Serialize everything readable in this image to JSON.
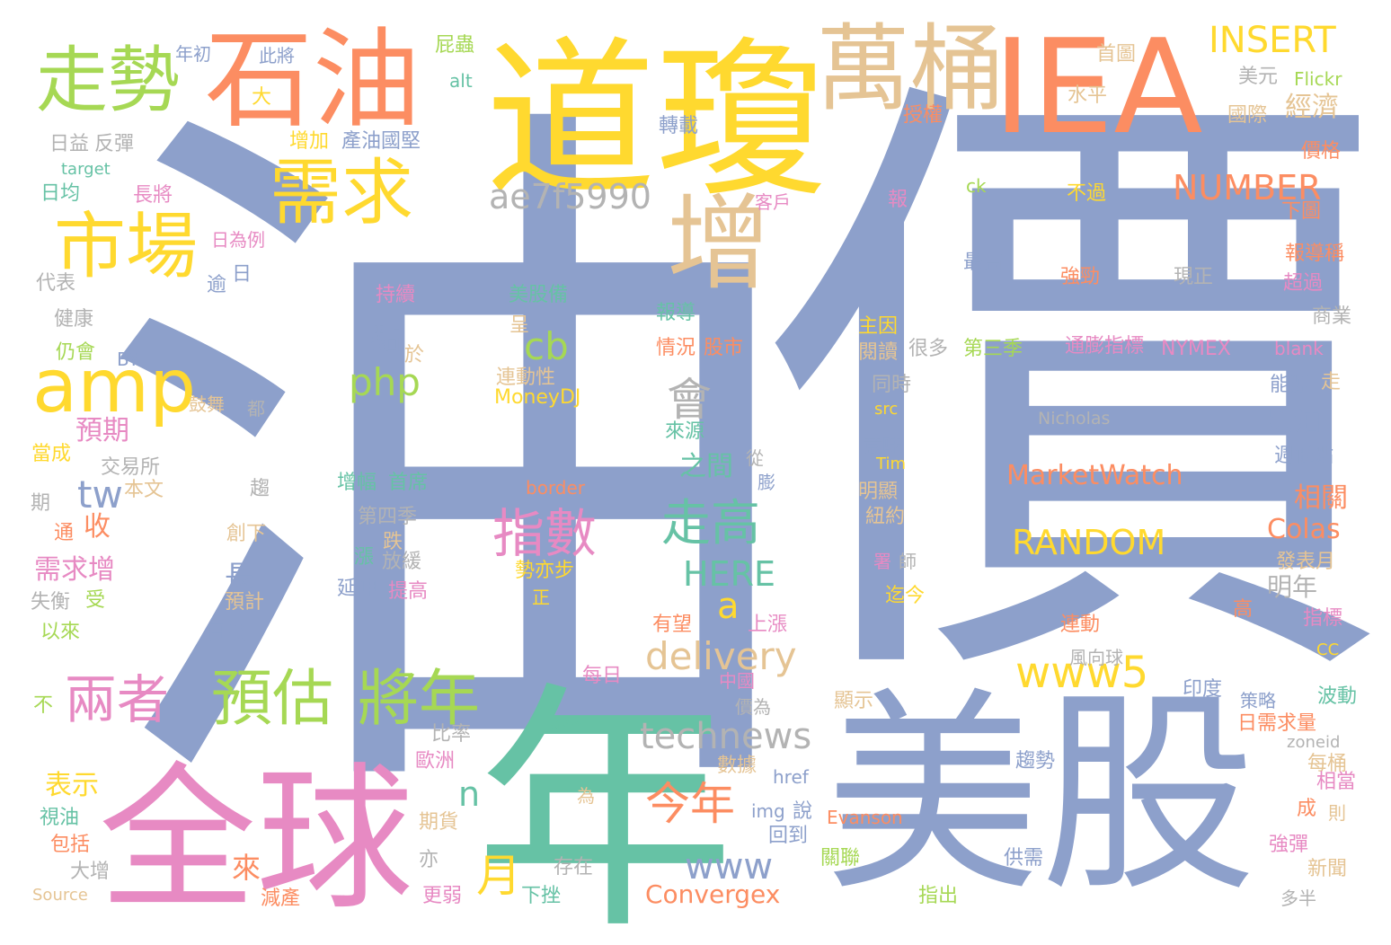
{
  "palette": {
    "blue": "#8da0cb",
    "teal": "#66c2a5",
    "orange": "#fc8d62",
    "pink": "#e78ac3",
    "green": "#a6d854",
    "yellow": "#ffd92f",
    "tan": "#e5c494",
    "gray": "#b3b3b3"
  },
  "words": [
    {
      "text": "油",
      "color": "blue"
    },
    {
      "text": "價",
      "color": "blue"
    },
    {
      "text": "道瓊",
      "color": "yellow"
    },
    {
      "text": "IEA",
      "color": "orange"
    },
    {
      "text": "年",
      "color": "teal"
    },
    {
      "text": "美股",
      "color": "blue"
    },
    {
      "text": "全球",
      "color": "pink"
    },
    {
      "text": "石油",
      "color": "orange"
    },
    {
      "text": "萬桶",
      "color": "tan"
    },
    {
      "text": "走勢",
      "color": "green"
    },
    {
      "text": "需求",
      "color": "yellow"
    },
    {
      "text": "市場",
      "color": "yellow"
    },
    {
      "text": "增",
      "color": "tan"
    },
    {
      "text": "amp",
      "color": "yellow"
    },
    {
      "text": "預估",
      "color": "green"
    },
    {
      "text": "將年",
      "color": "green"
    },
    {
      "text": "兩者",
      "color": "pink"
    },
    {
      "text": "指數",
      "color": "pink"
    },
    {
      "text": "走高",
      "color": "teal"
    },
    {
      "text": "www5",
      "color": "yellow"
    },
    {
      "text": "RANDOM",
      "color": "yellow"
    },
    {
      "text": "NUMBER",
      "color": "orange"
    },
    {
      "text": "INSERT",
      "color": "yellow"
    },
    {
      "text": "MarketWatch",
      "color": "orange"
    },
    {
      "text": "ae7f5990",
      "color": "gray"
    },
    {
      "text": "technews",
      "color": "gray"
    },
    {
      "text": "delivery",
      "color": "tan"
    },
    {
      "text": "今年",
      "color": "orange"
    },
    {
      "text": "HERE",
      "color": "teal"
    },
    {
      "text": "www",
      "color": "blue"
    },
    {
      "text": "Convergex",
      "color": "orange"
    },
    {
      "text": "php",
      "color": "green"
    },
    {
      "text": "cb",
      "color": "green"
    },
    {
      "text": "a",
      "color": "yellow"
    },
    {
      "text": "n",
      "color": "teal"
    },
    {
      "text": "月",
      "color": "yellow"
    },
    {
      "text": "會",
      "color": "gray"
    },
    {
      "text": "tw",
      "color": "blue"
    },
    {
      "text": "Colas",
      "color": "orange"
    },
    {
      "text": "原油",
      "color": "blue"
    },
    {
      "text": "明年",
      "color": "gray"
    },
    {
      "text": "相關",
      "color": "orange"
    },
    {
      "text": "點",
      "color": "blue"
    },
    {
      "text": "之間",
      "color": "teal"
    },
    {
      "text": "預期",
      "color": "pink"
    },
    {
      "text": "需求增",
      "color": "pink"
    },
    {
      "text": "表示",
      "color": "yellow"
    },
    {
      "text": "收",
      "color": "orange"
    },
    {
      "text": "長",
      "color": "blue"
    },
    {
      "text": "來",
      "color": "orange"
    },
    {
      "text": "經濟",
      "color": "tan"
    },
    {
      "text": "Nicholas",
      "color": "gray"
    },
    {
      "text": "Evanson",
      "color": "orange"
    },
    {
      "text": "NYMEX",
      "color": "pink"
    },
    {
      "text": "MoneyDJ",
      "color": "yellow"
    },
    {
      "text": "通膨指標",
      "color": "pink"
    },
    {
      "text": "第三季",
      "color": "green"
    },
    {
      "text": "很多",
      "color": "gray"
    },
    {
      "text": "情況",
      "color": "orange"
    },
    {
      "text": "股市",
      "color": "orange"
    },
    {
      "text": "報導",
      "color": "teal"
    },
    {
      "text": "美股備",
      "color": "teal"
    },
    {
      "text": "持續",
      "color": "pink"
    },
    {
      "text": "連動性",
      "color": "tan"
    },
    {
      "text": "增幅",
      "color": "teal"
    },
    {
      "text": "首席",
      "color": "teal"
    },
    {
      "text": "第四季",
      "color": "gray"
    },
    {
      "text": "放緩",
      "color": "gray"
    },
    {
      "text": "延伸",
      "color": "blue"
    },
    {
      "text": "提高",
      "color": "pink"
    },
    {
      "text": "勢亦步",
      "color": "yellow"
    },
    {
      "text": "border",
      "color": "orange"
    },
    {
      "text": "產油國堅",
      "color": "blue"
    },
    {
      "text": "增加",
      "color": "yellow"
    },
    {
      "text": "轉載",
      "color": "blue"
    },
    {
      "text": "屁蟲",
      "color": "green"
    },
    {
      "text": "alt",
      "color": "teal"
    },
    {
      "text": "此將",
      "color": "blue"
    },
    {
      "text": "年初",
      "color": "blue"
    },
    {
      "text": "大",
      "color": "yellow"
    },
    {
      "text": "日益",
      "color": "gray"
    },
    {
      "text": "反彈",
      "color": "gray"
    },
    {
      "text": "target",
      "color": "teal"
    },
    {
      "text": "日均",
      "color": "teal"
    },
    {
      "text": "長將",
      "color": "pink"
    },
    {
      "text": "客戶",
      "color": "pink"
    },
    {
      "text": "日為例",
      "color": "pink"
    },
    {
      "text": "代表",
      "color": "gray"
    },
    {
      "text": "逾",
      "color": "blue"
    },
    {
      "text": "日",
      "color": "blue"
    },
    {
      "text": "健康",
      "color": "gray"
    },
    {
      "text": "仍會",
      "color": "green"
    },
    {
      "text": "BY",
      "color": "blue"
    },
    {
      "text": "於",
      "color": "tan"
    },
    {
      "text": "鼓舞",
      "color": "tan"
    },
    {
      "text": "都",
      "color": "gray"
    },
    {
      "text": "當成",
      "color": "yellow"
    },
    {
      "text": "交易所",
      "color": "gray"
    },
    {
      "text": "本文",
      "color": "tan"
    },
    {
      "text": "趨",
      "color": "gray"
    },
    {
      "text": "期",
      "color": "gray"
    },
    {
      "text": "通",
      "color": "orange"
    },
    {
      "text": "創下",
      "color": "tan"
    },
    {
      "text": "失衡",
      "color": "gray"
    },
    {
      "text": "受",
      "color": "green"
    },
    {
      "text": "預計",
      "color": "tan"
    },
    {
      "text": "以來",
      "color": "green"
    },
    {
      "text": "日以",
      "color": "blue"
    },
    {
      "text": "不",
      "color": "green"
    },
    {
      "text": "首圖",
      "color": "tan"
    },
    {
      "text": "美元",
      "color": "gray"
    },
    {
      "text": "Flickr",
      "color": "green"
    },
    {
      "text": "水平",
      "color": "tan"
    },
    {
      "text": "授權",
      "color": "orange"
    },
    {
      "text": "國際",
      "color": "tan"
    },
    {
      "text": "價格",
      "color": "orange"
    },
    {
      "text": "報",
      "color": "pink"
    },
    {
      "text": "ck",
      "color": "green"
    },
    {
      "text": "不過",
      "color": "yellow"
    },
    {
      "text": "下圖",
      "color": "orange"
    },
    {
      "text": "最高",
      "color": "blue"
    },
    {
      "text": "強勁",
      "color": "orange"
    },
    {
      "text": "現正",
      "color": "gray"
    },
    {
      "text": "報導稱",
      "color": "orange"
    },
    {
      "text": "超過",
      "color": "pink"
    },
    {
      "text": "商業",
      "color": "gray"
    },
    {
      "text": "blank",
      "color": "pink"
    },
    {
      "text": "主因",
      "color": "yellow"
    },
    {
      "text": "閱讀",
      "color": "tan"
    },
    {
      "text": "能源",
      "color": "blue"
    },
    {
      "text": "走",
      "color": "tan"
    },
    {
      "text": "同時",
      "color": "gray"
    },
    {
      "text": "src",
      "color": "yellow"
    },
    {
      "text": "週低點",
      "color": "blue"
    },
    {
      "text": "意味",
      "color": "blue"
    },
    {
      "text": "Tim",
      "color": "yellow"
    },
    {
      "text": "明顯",
      "color": "tan"
    },
    {
      "text": "紐約",
      "color": "tan"
    },
    {
      "text": "署",
      "color": "pink"
    },
    {
      "text": "師",
      "color": "gray"
    },
    {
      "text": "發表月",
      "color": "tan"
    },
    {
      "text": "迄今",
      "color": "yellow"
    },
    {
      "text": "高",
      "color": "orange"
    },
    {
      "text": "連動",
      "color": "orange"
    },
    {
      "text": "指標",
      "color": "pink"
    },
    {
      "text": "風向球",
      "color": "gray"
    },
    {
      "text": "CC",
      "color": "yellow"
    },
    {
      "text": "有望",
      "color": "orange"
    },
    {
      "text": "上漲",
      "color": "pink"
    },
    {
      "text": "每日",
      "color": "pink"
    },
    {
      "text": "中國",
      "color": "pink"
    },
    {
      "text": "印度",
      "color": "blue"
    },
    {
      "text": "策略",
      "color": "blue"
    },
    {
      "text": "波動",
      "color": "teal"
    },
    {
      "text": "價為",
      "color": "gray"
    },
    {
      "text": "顯示",
      "color": "tan"
    },
    {
      "text": "日需求量",
      "color": "orange"
    },
    {
      "text": "avw",
      "color": "teal"
    },
    {
      "text": "比率",
      "color": "gray"
    },
    {
      "text": "歐洲",
      "color": "pink"
    },
    {
      "text": "數據",
      "color": "tan"
    },
    {
      "text": "href",
      "color": "blue"
    },
    {
      "text": "趨勢",
      "color": "blue"
    },
    {
      "text": "zoneid",
      "color": "gray"
    },
    {
      "text": "每桶",
      "color": "tan"
    },
    {
      "text": "相當",
      "color": "pink"
    },
    {
      "text": "為",
      "color": "tan"
    },
    {
      "text": "img",
      "color": "blue"
    },
    {
      "text": "說",
      "color": "blue"
    },
    {
      "text": "成",
      "color": "orange"
    },
    {
      "text": "則",
      "color": "tan"
    },
    {
      "text": "期貨",
      "color": "tan"
    },
    {
      "text": "回到",
      "color": "blue"
    },
    {
      "text": "強彈",
      "color": "pink"
    },
    {
      "text": "亦",
      "color": "gray"
    },
    {
      "text": "存在",
      "color": "gray"
    },
    {
      "text": "關聯",
      "color": "green"
    },
    {
      "text": "供需",
      "color": "blue"
    },
    {
      "text": "新聞",
      "color": "tan"
    },
    {
      "text": "視油",
      "color": "teal"
    },
    {
      "text": "包括",
      "color": "orange"
    },
    {
      "text": "大增",
      "color": "gray"
    },
    {
      "text": "Source",
      "color": "tan"
    },
    {
      "text": "減產",
      "color": "orange"
    },
    {
      "text": "更弱",
      "color": "pink"
    },
    {
      "text": "下挫",
      "color": "teal"
    },
    {
      "text": "指出",
      "color": "green"
    },
    {
      "text": "多半",
      "color": "gray"
    },
    {
      "text": "呈",
      "color": "tan"
    },
    {
      "text": "跌",
      "color": "tan"
    },
    {
      "text": "漲",
      "color": "teal"
    },
    {
      "text": "正",
      "color": "yellow"
    },
    {
      "text": "從",
      "color": "gray"
    },
    {
      "text": "膨",
      "color": "blue"
    },
    {
      "text": "來源",
      "color": "teal"
    }
  ]
}
